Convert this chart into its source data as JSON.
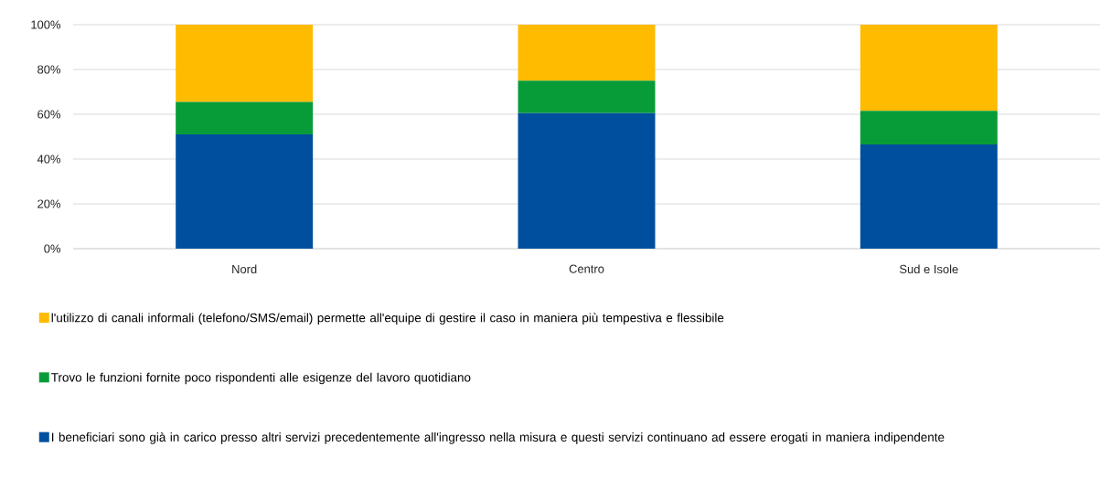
{
  "chart_data": {
    "type": "bar",
    "stacked": true,
    "categories": [
      "Nord",
      "Centro",
      "Sud e Isole"
    ],
    "series": [
      {
        "name": "I beneficiari sono già in carico presso altri servizi precedentemente all'ingresso nella misura e questi servizi continuano ad essere erogati in maniera indipendente",
        "color": "#004f9f",
        "values": [
          51,
          60.5,
          46.5
        ]
      },
      {
        "name": "Trovo le funzioni fornite poco rispondenti alle esigenze del lavoro quotidiano",
        "color": "#089c38",
        "values": [
          14.5,
          14.5,
          15
        ]
      },
      {
        "name": "l'utilizzo di canali informali (telefono/SMS/email) permette all'equipe di gestire il caso in maniera più tempestiva e flessibile",
        "color": "#ffbb00",
        "values": [
          34.5,
          25,
          38.5
        ]
      }
    ],
    "ylim": [
      0,
      100
    ],
    "yticks": [
      {
        "value": 0,
        "label": "0%"
      },
      {
        "value": 20,
        "label": "20%"
      },
      {
        "value": 40,
        "label": "40%"
      },
      {
        "value": 60,
        "label": "60%"
      },
      {
        "value": 80,
        "label": "80%"
      },
      {
        "value": 100,
        "label": "100%"
      }
    ],
    "grid": "y",
    "legend": "bottom"
  }
}
